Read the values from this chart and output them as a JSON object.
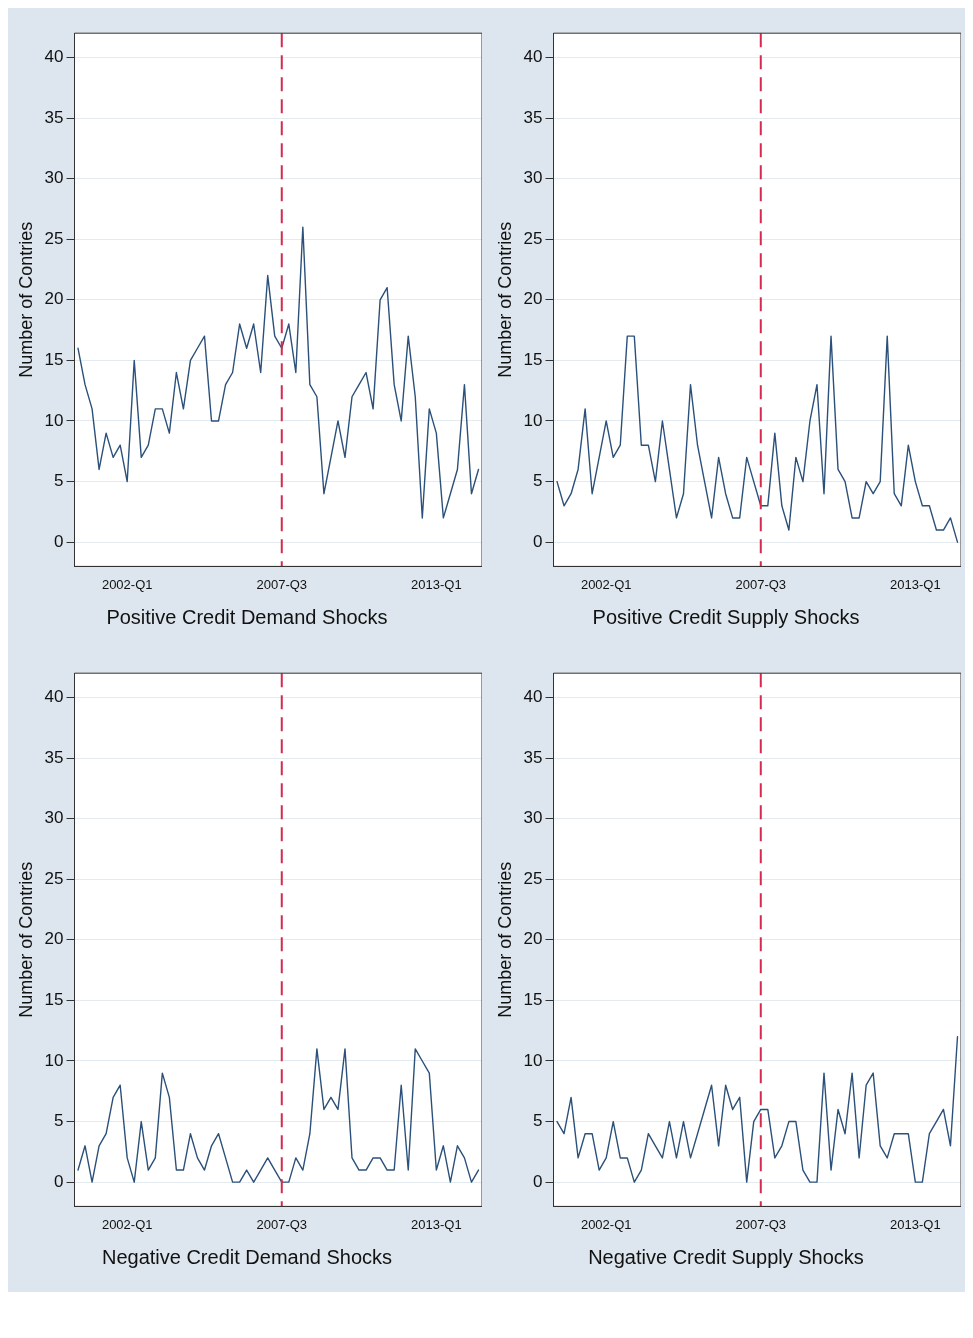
{
  "chart_data": [
    {
      "type": "line",
      "title": "Positive Credit Demand Shocks",
      "ylabel": "Number of Contries",
      "categories": [
        null,
        null,
        null,
        null,
        null,
        null,
        null,
        "2002-Q1",
        null,
        null,
        null,
        null,
        null,
        null,
        null,
        null,
        null,
        null,
        null,
        null,
        null,
        null,
        null,
        null,
        null,
        null,
        null,
        null,
        null,
        "2007-Q3",
        null,
        null,
        null,
        null,
        null,
        null,
        null,
        null,
        null,
        null,
        null,
        null,
        null,
        null,
        null,
        null,
        null,
        null,
        null,
        null,
        null,
        "2013-Q1",
        null,
        null,
        null,
        null,
        null,
        null
      ],
      "series": [
        {
          "color": "#2b5079",
          "values": [
            16,
            13,
            11,
            6,
            9,
            7,
            8,
            5,
            15,
            7,
            8,
            11,
            11,
            9,
            14,
            11,
            15,
            16,
            17,
            10,
            10,
            13,
            14,
            18,
            16,
            18,
            14,
            22,
            17,
            16,
            18,
            14,
            26,
            13,
            12,
            4,
            7,
            10,
            7,
            12,
            13,
            14,
            11,
            20,
            21,
            13,
            10,
            17,
            12,
            2,
            11,
            9,
            2,
            4,
            6,
            13,
            4,
            6
          ]
        }
      ],
      "grid": "y",
      "ref_lines": [
        {
          "axis": "x",
          "value": "2007-Q3",
          "color": "#d42a4e",
          "line_style": "dashed"
        }
      ],
      "ylim": [
        -2,
        42
      ],
      "yticks": [
        0,
        5,
        10,
        15,
        20,
        25,
        30,
        35,
        40
      ]
    },
    {
      "type": "line",
      "title": "Positive Credit Supply Shocks",
      "ylabel": "Number of Contries",
      "categories": [
        null,
        null,
        null,
        null,
        null,
        null,
        null,
        "2002-Q1",
        null,
        null,
        null,
        null,
        null,
        null,
        null,
        null,
        null,
        null,
        null,
        null,
        null,
        null,
        null,
        null,
        null,
        null,
        null,
        null,
        null,
        "2007-Q3",
        null,
        null,
        null,
        null,
        null,
        null,
        null,
        null,
        null,
        null,
        null,
        null,
        null,
        null,
        null,
        null,
        null,
        null,
        null,
        null,
        null,
        "2013-Q1",
        null,
        null,
        null,
        null,
        null,
        null
      ],
      "series": [
        {
          "color": "#2b5079",
          "values": [
            5,
            3,
            4,
            6,
            11,
            4,
            7,
            10,
            7,
            8,
            17,
            17,
            8,
            8,
            5,
            10,
            6,
            2,
            4,
            13,
            8,
            5,
            2,
            7,
            4,
            2,
            2,
            7,
            5,
            3,
            3,
            9,
            3,
            1,
            7,
            5,
            10,
            13,
            4,
            17,
            6,
            5,
            2,
            2,
            5,
            4,
            5,
            17,
            4,
            3,
            8,
            5,
            3,
            3,
            1,
            1,
            2,
            0
          ]
        }
      ],
      "grid": "y",
      "ref_lines": [
        {
          "axis": "x",
          "value": "2007-Q3",
          "color": "#d42a4e",
          "line_style": "dashed"
        }
      ],
      "ylim": [
        -2,
        42
      ],
      "yticks": [
        0,
        5,
        10,
        15,
        20,
        25,
        30,
        35,
        40
      ]
    },
    {
      "type": "line",
      "title": "Negative Credit Demand Shocks",
      "ylabel": "Number of Contries",
      "categories": [
        null,
        null,
        null,
        null,
        null,
        null,
        null,
        "2002-Q1",
        null,
        null,
        null,
        null,
        null,
        null,
        null,
        null,
        null,
        null,
        null,
        null,
        null,
        null,
        null,
        null,
        null,
        null,
        null,
        null,
        null,
        "2007-Q3",
        null,
        null,
        null,
        null,
        null,
        null,
        null,
        null,
        null,
        null,
        null,
        null,
        null,
        null,
        null,
        null,
        null,
        null,
        null,
        null,
        null,
        "2013-Q1",
        null,
        null,
        null,
        null,
        null,
        null
      ],
      "series": [
        {
          "color": "#2b5079",
          "values": [
            1,
            3,
            0,
            3,
            4,
            7,
            8,
            2,
            0,
            5,
            1,
            2,
            9,
            7,
            1,
            1,
            4,
            2,
            1,
            3,
            4,
            2,
            0,
            0,
            1,
            0,
            1,
            2,
            1,
            0,
            0,
            2,
            1,
            4,
            11,
            6,
            7,
            6,
            11,
            2,
            1,
            1,
            2,
            2,
            1,
            1,
            8,
            1,
            11,
            10,
            9,
            1,
            3,
            0,
            3,
            2,
            0,
            1
          ]
        }
      ],
      "grid": "y",
      "ref_lines": [
        {
          "axis": "x",
          "value": "2007-Q3",
          "color": "#d42a4e",
          "line_style": "dashed"
        }
      ],
      "ylim": [
        -2,
        42
      ],
      "yticks": [
        0,
        5,
        10,
        15,
        20,
        25,
        30,
        35,
        40
      ]
    },
    {
      "type": "line",
      "title": "Negative Credit Supply Shocks",
      "ylabel": "Number of Contries",
      "categories": [
        null,
        null,
        null,
        null,
        null,
        null,
        null,
        "2002-Q1",
        null,
        null,
        null,
        null,
        null,
        null,
        null,
        null,
        null,
        null,
        null,
        null,
        null,
        null,
        null,
        null,
        null,
        null,
        null,
        null,
        null,
        "2007-Q3",
        null,
        null,
        null,
        null,
        null,
        null,
        null,
        null,
        null,
        null,
        null,
        null,
        null,
        null,
        null,
        null,
        null,
        null,
        null,
        null,
        null,
        "2013-Q1",
        null,
        null,
        null,
        null,
        null,
        null
      ],
      "series": [
        {
          "color": "#2b5079",
          "values": [
            5,
            4,
            7,
            2,
            4,
            4,
            1,
            2,
            5,
            2,
            2,
            0,
            1,
            4,
            3,
            2,
            5,
            2,
            5,
            2,
            4,
            6,
            8,
            3,
            8,
            6,
            7,
            0,
            5,
            6,
            6,
            2,
            3,
            5,
            5,
            1,
            0,
            0,
            9,
            1,
            6,
            4,
            9,
            2,
            8,
            9,
            3,
            2,
            4,
            4,
            4,
            0,
            0,
            4,
            5,
            6,
            3,
            12
          ]
        }
      ],
      "grid": "y",
      "ref_lines": [
        {
          "axis": "x",
          "value": "2007-Q3",
          "color": "#d42a4e",
          "line_style": "dashed"
        }
      ],
      "ylim": [
        -2,
        42
      ],
      "yticks": [
        0,
        5,
        10,
        15,
        20,
        25,
        30,
        35,
        40
      ]
    }
  ]
}
